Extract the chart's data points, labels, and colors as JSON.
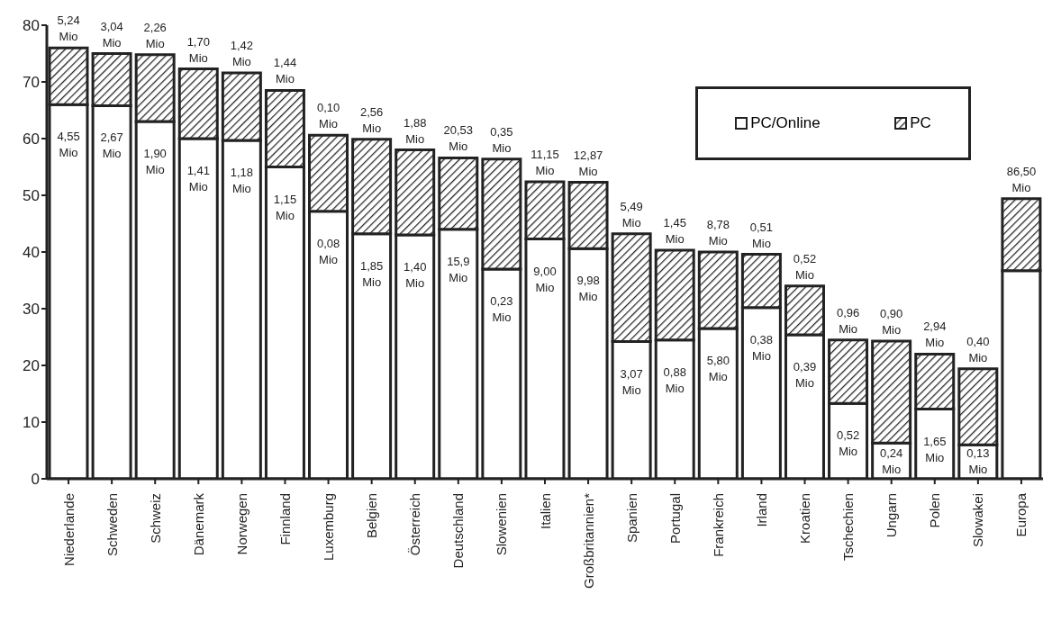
{
  "chart_data": {
    "type": "bar",
    "stacked": true,
    "categories": [
      "Niederlande",
      "Schweden",
      "Schweiz",
      "Dänemark",
      "Norwegen",
      "Finnland",
      "Luxemburg",
      "Belgien",
      "Österreich",
      "Deutschland",
      "Slowenien",
      "Italien",
      "Großbritannien*",
      "Spanien",
      "Portugal",
      "Frankreich",
      "Irland",
      "Kroatien",
      "Tschechien",
      "Ungarn",
      "Polen",
      "Slowakei",
      "Europa"
    ],
    "series": [
      {
        "name": "PC/Online",
        "color": "#ffffff",
        "values": [
          66,
          65.8,
          63,
          60,
          59.7,
          55,
          47.2,
          43.2,
          43,
          44,
          37,
          42.3,
          40.6,
          24.2,
          24.5,
          26.5,
          30.2,
          25.4,
          13.3,
          6.3,
          12.3,
          6,
          36.7
        ]
      },
      {
        "name": "PC",
        "color": "#222222",
        "values": [
          10,
          9.2,
          11.8,
          12.3,
          11.9,
          13.5,
          13.4,
          16.7,
          15,
          12.6,
          19.4,
          10.1,
          11.7,
          19,
          15.8,
          13.5,
          9.4,
          8.6,
          11.2,
          18,
          9.7,
          13.4,
          12.7
        ]
      }
    ],
    "annotations": [
      {
        "text": "4,55 Mio",
        "x": "Niederlande",
        "y": 66
      },
      {
        "text": "2,67 Mio",
        "x": "Schweden",
        "y": 65.8
      },
      {
        "text": "1,90 Mio",
        "x": "Schweiz",
        "y": 63
      },
      {
        "text": "1,41 Mio",
        "x": "Dänemark",
        "y": 60
      },
      {
        "text": "1,18 Mio",
        "x": "Norwegen",
        "y": 59.7
      },
      {
        "text": "1,15 Mio",
        "x": "Finnland",
        "y": 55
      },
      {
        "text": "0,08 Mio",
        "x": "Luxemburg",
        "y": 47.2
      },
      {
        "text": "1,85 Mio",
        "x": "Belgien",
        "y": 43.2
      },
      {
        "text": "1,40 Mio",
        "x": "Österreich",
        "y": 43
      },
      {
        "text": "15,9 Mio",
        "x": "Deutschland",
        "y": 44
      },
      {
        "text": "0,23 Mio",
        "x": "Slowenien",
        "y": 37
      },
      {
        "text": "9,00 Mio",
        "x": "Italien",
        "y": 42.3
      },
      {
        "text": "9,98 Mio",
        "x": "Großbritannien*",
        "y": 40.6
      },
      {
        "text": "3,07 Mio",
        "x": "Spanien",
        "y": 24.2
      },
      {
        "text": "0,88 Mio",
        "x": "Portugal",
        "y": 24.5
      },
      {
        "text": "5,80 Mio",
        "x": "Frankreich",
        "y": 26.5
      },
      {
        "text": "0,38 Mio",
        "x": "Irland",
        "y": 30.2
      },
      {
        "text": "0,39 Mio",
        "x": "Kroatien",
        "y": 25.4
      },
      {
        "text": "0,52 Mio",
        "x": "Tschechien",
        "y": 13.3
      },
      {
        "text": "0,24 Mio",
        "x": "Ungarn",
        "y": 6.3
      },
      {
        "text": "1,65 Mio",
        "x": "Polen",
        "y": 12.3
      },
      {
        "text": "0,13 Mio",
        "x": "Slowakei",
        "y": 6
      },
      {
        "text": "5,24 Mio",
        "x": "Niederlande",
        "y": 76
      },
      {
        "text": "3,04 Mio",
        "x": "Schweden",
        "y": 75
      },
      {
        "text": "2,26 Mio",
        "x": "Schweiz",
        "y": 74.8
      },
      {
        "text": "1,70 Mio",
        "x": "Dänemark",
        "y": 72.3
      },
      {
        "text": "1,42 Mio",
        "x": "Norwegen",
        "y": 71.6
      },
      {
        "text": "1,44 Mio",
        "x": "Finnland",
        "y": 68.5
      },
      {
        "text": "0,10 Mio",
        "x": "Luxemburg",
        "y": 60.6
      },
      {
        "text": "2,56 Mio",
        "x": "Belgien",
        "y": 59.9
      },
      {
        "text": "1,88 Mio",
        "x": "Österreich",
        "y": 58
      },
      {
        "text": "20,53 Mio",
        "x": "Deutschland",
        "y": 56.6
      },
      {
        "text": "0,35 Mio",
        "x": "Slowenien",
        "y": 56.4
      },
      {
        "text": "11,15 Mio",
        "x": "Italien",
        "y": 52.4
      },
      {
        "text": "12,87 Mio",
        "x": "Großbritannien*",
        "y": 52.3
      },
      {
        "text": "5,49 Mio",
        "x": "Spanien",
        "y": 43.2
      },
      {
        "text": "1,45 Mio",
        "x": "Portugal",
        "y": 40.3
      },
      {
        "text": "8,78 Mio",
        "x": "Frankreich",
        "y": 40
      },
      {
        "text": "0,51 Mio",
        "x": "Irland",
        "y": 39.6
      },
      {
        "text": "0,52 Mio",
        "x": "Kroatien",
        "y": 34
      },
      {
        "text": "0,96 Mio",
        "x": "Tschechien",
        "y": 24.5
      },
      {
        "text": "0,90 Mio",
        "x": "Ungarn",
        "y": 24.3
      },
      {
        "text": "2,94 Mio",
        "x": "Polen",
        "y": 22
      },
      {
        "text": "0,40 Mio",
        "x": "Slowakei",
        "y": 19.4
      },
      {
        "text": "86,50 Mio",
        "x": "Europa",
        "y": 49.4
      }
    ],
    "ylim": [
      0,
      80
    ],
    "yticks": [
      0,
      10,
      20,
      30,
      40,
      50,
      60,
      70,
      80
    ],
    "grid": false,
    "legend": "top right"
  }
}
